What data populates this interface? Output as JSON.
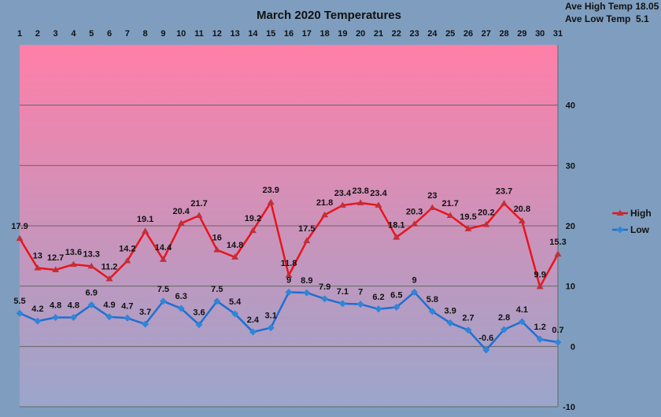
{
  "chart_data": {
    "type": "line",
    "title": "March 2020 Temperatures",
    "categories": [
      "1",
      "2",
      "3",
      "4",
      "5",
      "6",
      "7",
      "8",
      "9",
      "10",
      "11",
      "12",
      "13",
      "14",
      "15",
      "16",
      "17",
      "18",
      "19",
      "20",
      "21",
      "22",
      "23",
      "24",
      "25",
      "26",
      "27",
      "28",
      "29",
      "30",
      "31"
    ],
    "series": [
      {
        "name": "High",
        "color": "#e8141c",
        "marker": "triangle",
        "values": [
          17.9,
          13,
          12.7,
          13.6,
          13.3,
          11.2,
          14.2,
          19.1,
          14.4,
          20.4,
          21.7,
          16,
          14.8,
          19.2,
          23.9,
          11.8,
          17.5,
          21.8,
          23.4,
          23.8,
          23.4,
          18.1,
          20.3,
          23,
          21.7,
          19.5,
          20.2,
          23.7,
          20.8,
          9.9,
          15.3
        ]
      },
      {
        "name": "Low",
        "color": "#1f6fcf",
        "marker": "diamond",
        "values": [
          5.5,
          4.2,
          4.8,
          4.8,
          6.9,
          4.9,
          4.7,
          3.7,
          7.5,
          6.3,
          3.6,
          7.5,
          5.4,
          2.4,
          3.1,
          9,
          8.9,
          7.9,
          7.1,
          7,
          6.2,
          6.5,
          9,
          5.8,
          3.9,
          2.7,
          -0.6,
          2.8,
          4.1,
          1.2,
          0.7
        ]
      }
    ],
    "ylim": [
      -10,
      50
    ],
    "yticks": [
      -10,
      0,
      10,
      20,
      30,
      40
    ],
    "grid": true,
    "legend": "right",
    "stats": {
      "ave_high": "Ave High Temp 18.05",
      "ave_low": "Ave Low Temp  5.1"
    },
    "colors": {
      "background": "#7f9ebf",
      "plot_top": "#ff7fa8",
      "plot_bottom": "#9aa6cc",
      "grid": "#666666"
    }
  }
}
